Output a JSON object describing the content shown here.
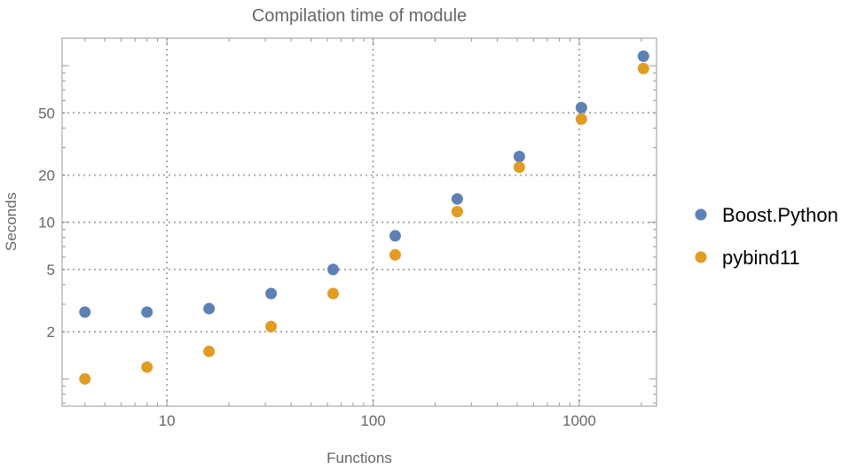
{
  "chart_data": {
    "type": "scatter",
    "title": "Compilation time of module",
    "xlabel": "Functions",
    "ylabel": "Seconds",
    "xscale": "log",
    "yscale": "log",
    "xlim": [
      3.1,
      2370
    ],
    "ylim": [
      0.67,
      150
    ],
    "xticks": [
      10,
      100,
      1000
    ],
    "xtick_labels": [
      "10",
      "100",
      "1000"
    ],
    "yticks": [
      2,
      5,
      10,
      20,
      50
    ],
    "ytick_labels": [
      "2",
      "5",
      "10",
      "20",
      "50"
    ],
    "grid": true,
    "legend_position": "right",
    "x": [
      4,
      8,
      16,
      32,
      64,
      128,
      256,
      512,
      1024,
      2048
    ],
    "series": [
      {
        "name": "Boost.Python",
        "color": "#5e81b5",
        "values": [
          2.67,
          2.67,
          2.81,
          3.51,
          5.0,
          8.2,
          14.1,
          26.3,
          54,
          115
        ]
      },
      {
        "name": "pybind11",
        "color": "#e19c24",
        "values": [
          1.0,
          1.19,
          1.5,
          2.16,
          3.51,
          6.2,
          11.7,
          22.5,
          45.6,
          96
        ]
      }
    ]
  }
}
